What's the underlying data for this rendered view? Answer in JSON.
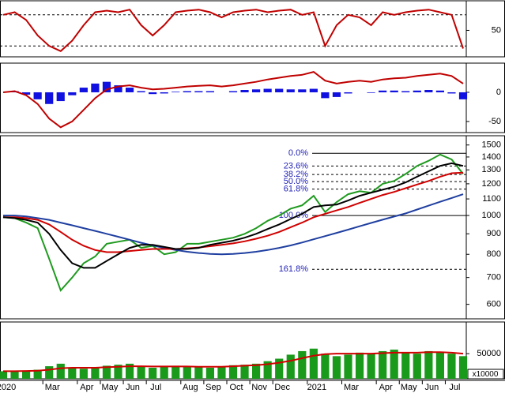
{
  "chart_data": [
    {
      "type": "line",
      "ylim": [
        -1,
        107
      ],
      "yticks": [
        50
      ],
      "levels": [
        20,
        80
      ],
      "series": [
        {
          "color": "#c00000",
          "values": [
            80,
            85,
            70,
            40,
            20,
            10,
            30,
            60,
            85,
            88,
            85,
            90,
            60,
            40,
            60,
            85,
            88,
            90,
            85,
            75,
            85,
            88,
            90,
            85,
            88,
            90,
            80,
            85,
            20,
            60,
            80,
            75,
            60,
            85,
            80,
            85,
            88,
            90,
            85,
            80,
            15
          ]
        }
      ]
    },
    {
      "type": "line",
      "ylim": [
        -69,
        50
      ],
      "yticks": [
        0,
        -50
      ],
      "series": [
        {
          "kind": "bars",
          "color": "#1010e0",
          "values": [
            0,
            2,
            -4,
            -12,
            -20,
            -15,
            -5,
            8,
            15,
            18,
            12,
            8,
            2,
            -3,
            -2,
            1,
            2,
            2,
            2,
            0,
            2,
            4,
            5,
            6,
            6,
            5,
            5,
            6,
            -10,
            -8,
            -2,
            0,
            -1,
            3,
            3,
            2,
            3,
            4,
            3,
            -2,
            -12
          ]
        },
        {
          "color": "#c00000",
          "values": [
            0,
            2,
            -5,
            -20,
            -45,
            -60,
            -50,
            -30,
            -10,
            5,
            10,
            12,
            8,
            5,
            6,
            8,
            10,
            11,
            12,
            10,
            12,
            15,
            18,
            22,
            25,
            28,
            30,
            35,
            20,
            15,
            18,
            20,
            18,
            22,
            24,
            25,
            28,
            30,
            32,
            28,
            15
          ]
        }
      ]
    },
    {
      "type": "line",
      "log_scale": true,
      "ylim": [
        552,
        1582
      ],
      "yticks": [
        1500,
        1400,
        1300,
        1200,
        1100,
        1000,
        900,
        800,
        700,
        600
      ],
      "series": [
        {
          "color": "#1f9a1f",
          "values": [
            990,
            985,
            960,
            930,
            780,
            650,
            700,
            760,
            790,
            850,
            860,
            870,
            830,
            840,
            800,
            810,
            850,
            850,
            860,
            870,
            880,
            900,
            930,
            970,
            1000,
            1040,
            1060,
            1120,
            1020,
            1080,
            1130,
            1150,
            1140,
            1200,
            1220,
            1270,
            1330,
            1370,
            1420,
            1380,
            1270
          ]
        },
        {
          "color": "#1f3fa0",
          "values": [
            1000,
            1000,
            995,
            985,
            975,
            960,
            945,
            930,
            915,
            900,
            885,
            870,
            855,
            842,
            830,
            820,
            812,
            806,
            802,
            800,
            802,
            806,
            812,
            820,
            830,
            842,
            856,
            872,
            888,
            905,
            922,
            940,
            958,
            976,
            994,
            1012,
            1035,
            1058,
            1082,
            1106,
            1130
          ]
        },
        {
          "color": "#d00000",
          "values": [
            990,
            990,
            985,
            975,
            950,
            910,
            870,
            840,
            820,
            810,
            810,
            815,
            820,
            825,
            825,
            825,
            828,
            832,
            838,
            845,
            852,
            862,
            875,
            890,
            910,
            935,
            960,
            990,
            1010,
            1030,
            1050,
            1075,
            1100,
            1125,
            1145,
            1170,
            1195,
            1220,
            1250,
            1275,
            1280
          ]
        },
        {
          "color": "#000000",
          "values": [
            990,
            985,
            975,
            960,
            900,
            820,
            760,
            740,
            740,
            770,
            800,
            830,
            845,
            845,
            835,
            825,
            825,
            830,
            845,
            855,
            865,
            880,
            900,
            925,
            950,
            980,
            1010,
            1050,
            1060,
            1065,
            1090,
            1120,
            1140,
            1160,
            1180,
            1210,
            1250,
            1290,
            1330,
            1350,
            1330
          ]
        }
      ],
      "fib_levels": [
        {
          "label": "0.0%",
          "value": 1430,
          "dashed": false
        },
        {
          "label": "23.6%",
          "value": 1329,
          "dashed": true
        },
        {
          "label": "38.2%",
          "value": 1266,
          "dashed": true
        },
        {
          "label": "50.0%",
          "value": 1215,
          "dashed": true
        },
        {
          "label": "61.8%",
          "value": 1164,
          "dashed": true
        },
        {
          "label": "100.0%",
          "value": 1000,
          "dashed": false
        },
        {
          "label": "161.8%",
          "value": 734,
          "dashed": true
        }
      ]
    },
    {
      "type": "bar",
      "ylim": [
        0,
        113000
      ],
      "yticks": [
        50000
      ],
      "unit_label": "x10000",
      "categories": [
        "2020",
        null,
        null,
        null,
        "Mar",
        null,
        null,
        "Apr",
        null,
        "May",
        null,
        "Jun",
        null,
        "Jul",
        null,
        null,
        "Aug",
        null,
        "Sep",
        null,
        "Oct",
        null,
        "Nov",
        null,
        "Dec",
        null,
        null,
        "2021",
        null,
        null,
        "Mar",
        null,
        null,
        "Apr",
        null,
        "May",
        null,
        "Jun",
        null,
        "Jul",
        null
      ],
      "series": [
        {
          "kind": "bars",
          "color": "#1a9a1a",
          "values": [
            15000,
            14000,
            16000,
            18000,
            25000,
            30000,
            22000,
            20000,
            22000,
            26000,
            28000,
            30000,
            24000,
            22000,
            25000,
            26000,
            24000,
            23000,
            22000,
            25000,
            27000,
            28000,
            30000,
            35000,
            40000,
            48000,
            55000,
            60000,
            50000,
            45000,
            48000,
            52000,
            50000,
            55000,
            58000,
            52000,
            50000,
            55000,
            53000,
            50000,
            45000
          ]
        },
        {
          "color": "#d00000",
          "values": [
            15000,
            15000,
            15500,
            16000,
            18000,
            21000,
            22000,
            22000,
            22000,
            23000,
            24000,
            25000,
            25000,
            24500,
            24500,
            24500,
            24500,
            24000,
            24000,
            24000,
            25000,
            26000,
            27000,
            29000,
            32000,
            36000,
            41000,
            46000,
            49000,
            50000,
            50000,
            50000,
            50000,
            51000,
            52000,
            52000,
            52000,
            53000,
            53000,
            52000,
            50000
          ]
        }
      ]
    }
  ]
}
